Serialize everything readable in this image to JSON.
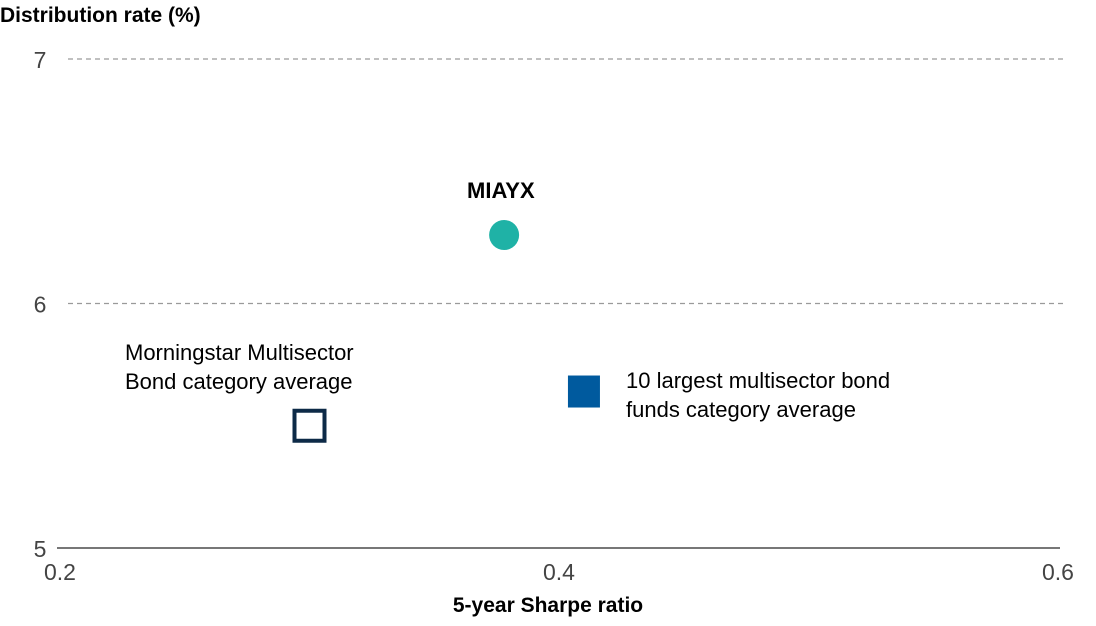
{
  "chart_data": {
    "type": "scatter",
    "ylabel": "Distribution rate (%)",
    "xlabel": "5-year Sharpe ratio",
    "xlim": [
      0.2,
      0.6
    ],
    "ylim": [
      5,
      7
    ],
    "xticks": [
      "0.2",
      "0.4",
      "0.6"
    ],
    "yticks": [
      "5",
      "6",
      "7"
    ],
    "grid": "horizontal dashed",
    "points": [
      {
        "label": "MIAYX",
        "x": 0.378,
        "y": 6.28,
        "marker": "circle",
        "color": "#1fb2a6"
      },
      {
        "label": "Morningstar Multisector Bond category average",
        "label_lines": [
          "Morningstar Multisector",
          "Bond category average"
        ],
        "x": 0.3,
        "y": 5.5,
        "marker": "hollow-square",
        "color": "#0d2a47"
      },
      {
        "label": "10 largest multisector bond funds category average",
        "label_lines": [
          "10 largest multisector bond",
          "funds category average"
        ],
        "x": 0.41,
        "y": 5.64,
        "marker": "square",
        "color": "#005a9e"
      }
    ]
  }
}
